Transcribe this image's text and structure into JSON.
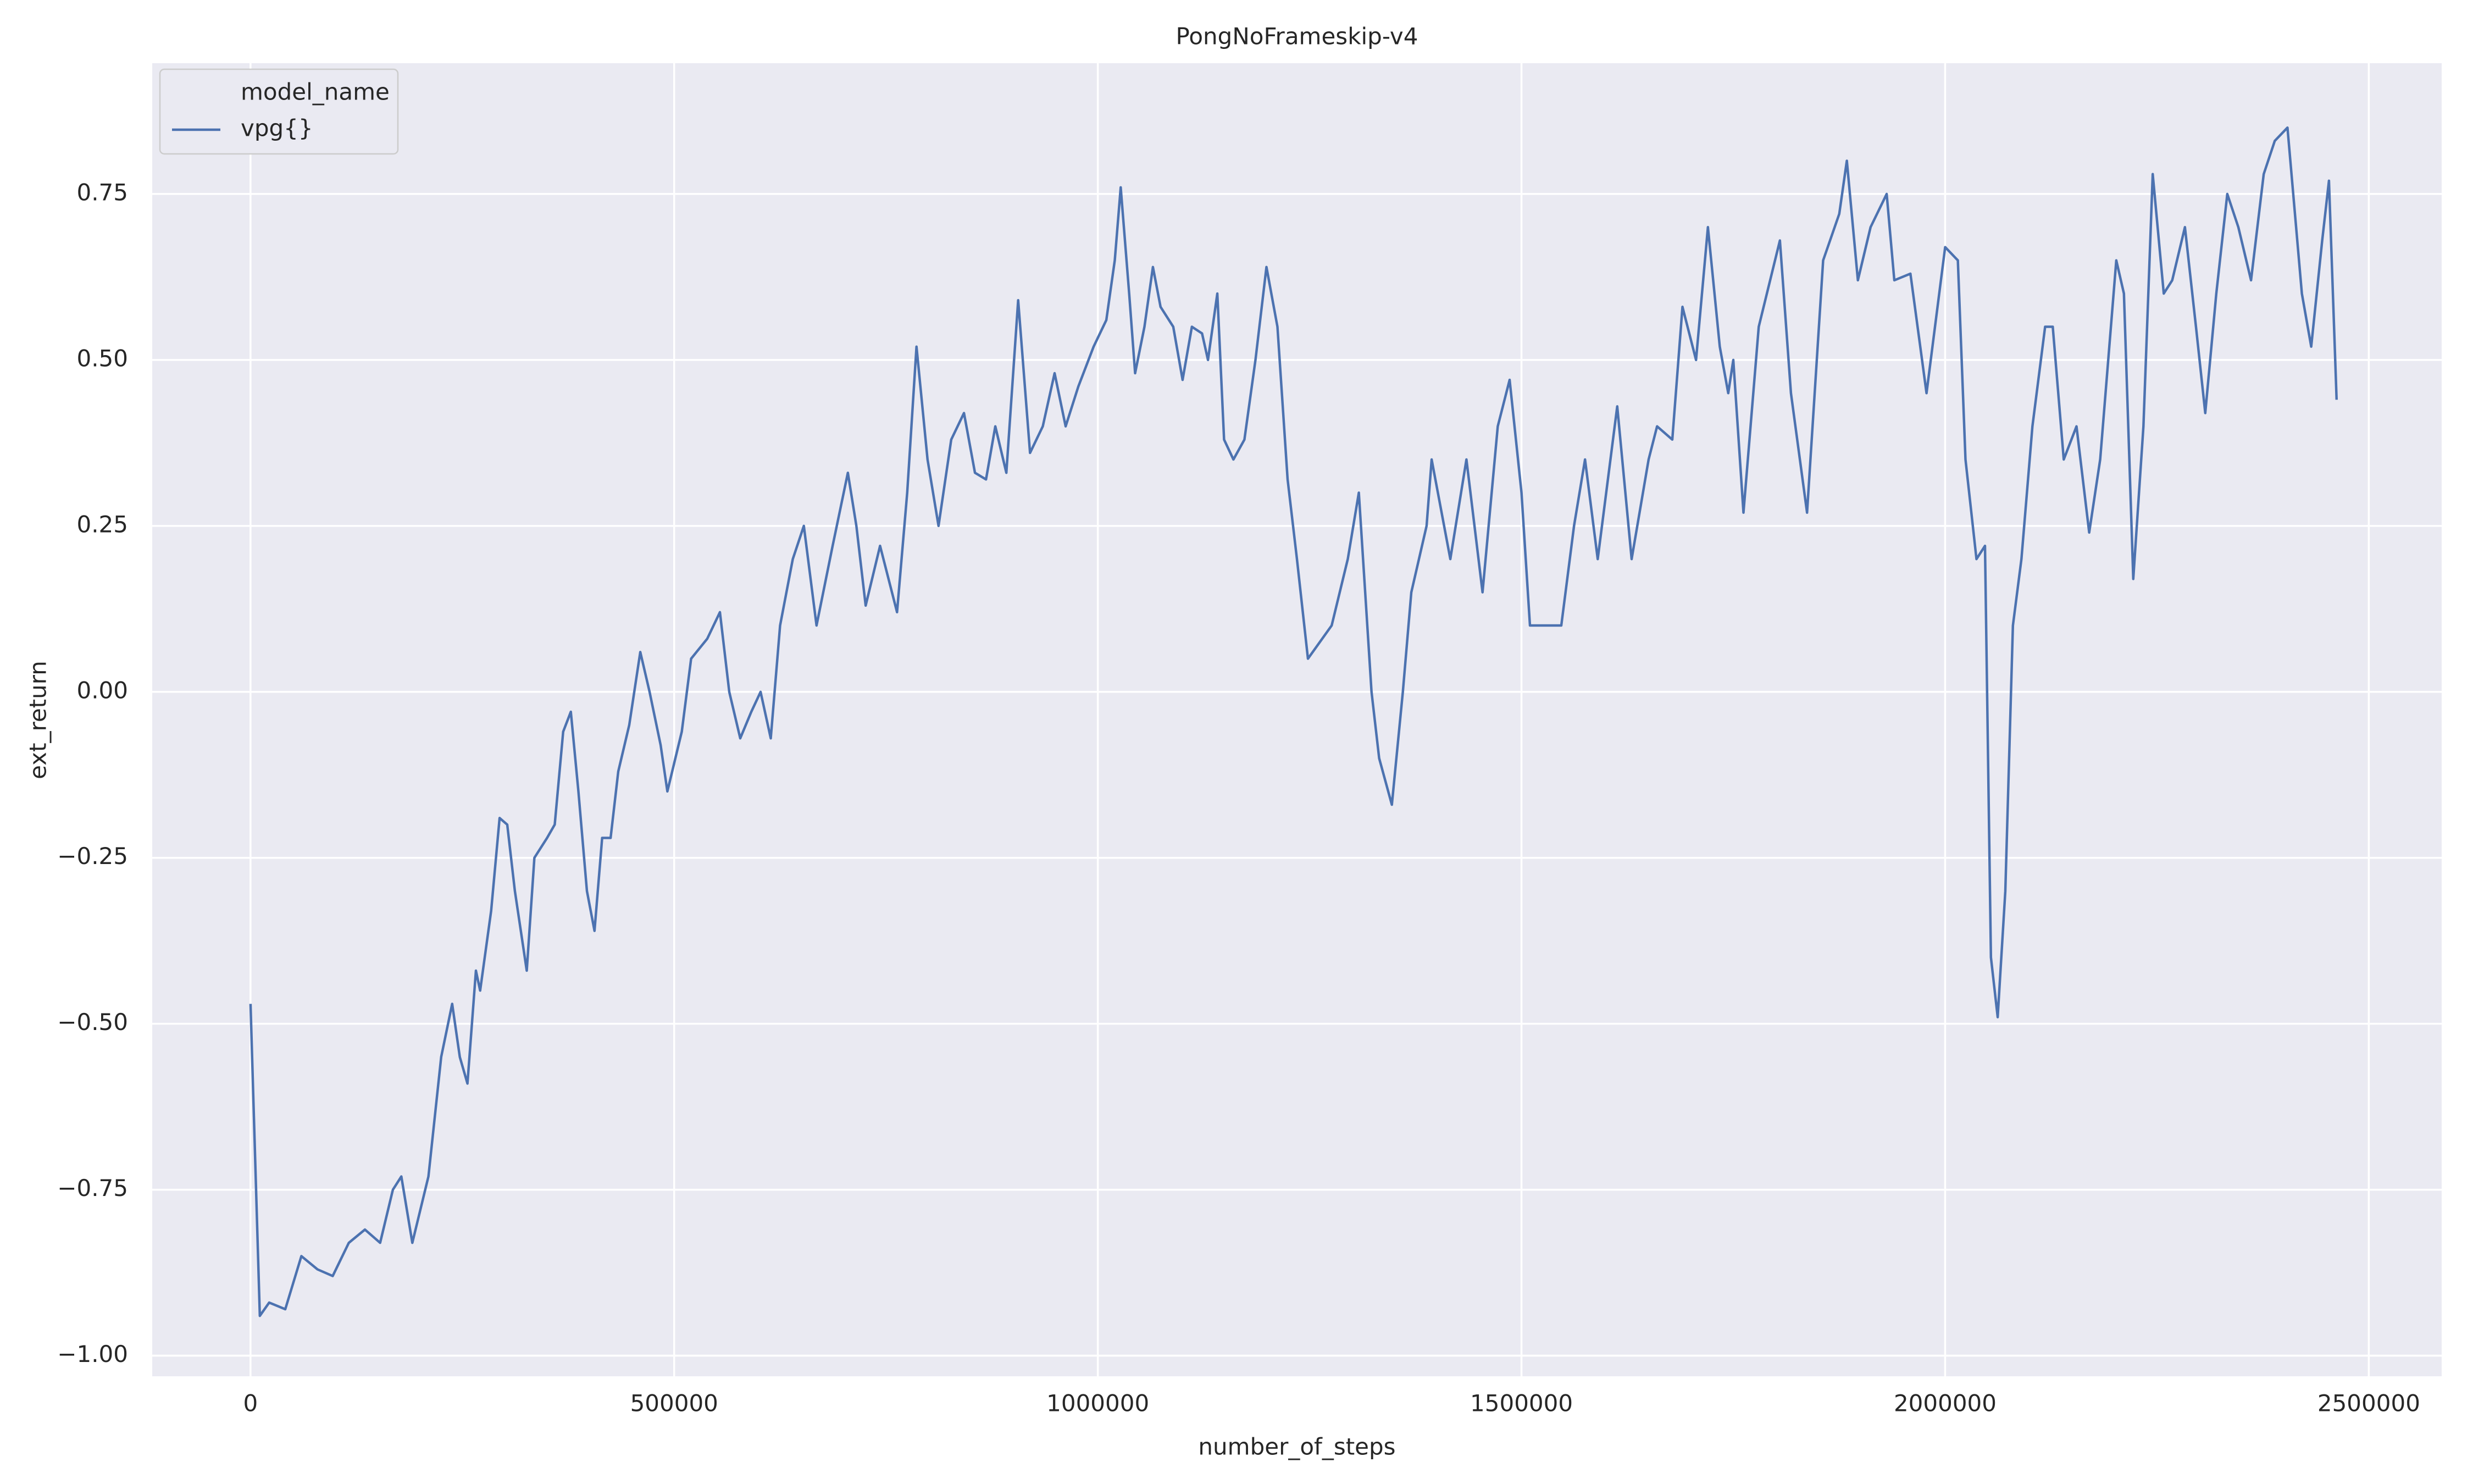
{
  "chart_data": {
    "type": "line",
    "title": "PongNoFrameskip-v4",
    "x_label": "number_of_steps",
    "y_label": "ext_return",
    "legend_title": "model_name",
    "legend": "upper left",
    "grid": true,
    "xlim": [
      -116000,
      2586000
    ],
    "ylim": [
      -1.031,
      0.947
    ],
    "xticks": [
      0,
      500000,
      1000000,
      1500000,
      2000000,
      2500000
    ],
    "yticks": [
      {
        "value": -1.0,
        "label": "−1.00"
      },
      {
        "value": -0.75,
        "label": "−0.75"
      },
      {
        "value": -0.5,
        "label": "−0.50"
      },
      {
        "value": -0.25,
        "label": "−0.25"
      },
      {
        "value": 0.0,
        "label": "0.00"
      },
      {
        "value": 0.25,
        "label": "0.25"
      },
      {
        "value": 0.5,
        "label": "0.50"
      },
      {
        "value": 0.75,
        "label": "0.75"
      }
    ],
    "x": [
      0,
      11000,
      22000,
      41000,
      60000,
      79000,
      97000,
      116000,
      135000,
      153000,
      168000,
      178000,
      191000,
      210000,
      225000,
      238000,
      247000,
      256000,
      266000,
      271000,
      284000,
      294000,
      303000,
      312000,
      326000,
      335000,
      350000,
      359000,
      369000,
      378000,
      387000,
      397000,
      406000,
      415000,
      425000,
      434000,
      447000,
      460000,
      471000,
      484000,
      492000,
      509000,
      520000,
      539000,
      554000,
      565000,
      578000,
      591000,
      602000,
      614000,
      625000,
      640000,
      653000,
      668000,
      687000,
      705000,
      715000,
      726000,
      743000,
      763000,
      775000,
      786000,
      799000,
      812000,
      827000,
      842000,
      855000,
      868000,
      879000,
      892000,
      906000,
      920000,
      935000,
      949000,
      962000,
      977000,
      995000,
      1010000,
      1020000,
      1027000,
      1037000,
      1044000,
      1055000,
      1065000,
      1074000,
      1089000,
      1100000,
      1111000,
      1123000,
      1130000,
      1141000,
      1149000,
      1160000,
      1173000,
      1186000,
      1199000,
      1212000,
      1224000,
      1235000,
      1248000,
      1276000,
      1295000,
      1308000,
      1323000,
      1332000,
      1347000,
      1360000,
      1370000,
      1388000,
      1394000,
      1416000,
      1435000,
      1454000,
      1472000,
      1486000,
      1500000,
      1510000,
      1528000,
      1547000,
      1562000,
      1575000,
      1590000,
      1613000,
      1630000,
      1650000,
      1660000,
      1678000,
      1690000,
      1706000,
      1720000,
      1734000,
      1744000,
      1750000,
      1762000,
      1780000,
      1805000,
      1818000,
      1837000,
      1856000,
      1875000,
      1884000,
      1897000,
      1912000,
      1931000,
      1940000,
      1959000,
      1978000,
      2000000,
      2015000,
      2024000,
      2037000,
      2047000,
      2054000,
      2062000,
      2071000,
      2080000,
      2090000,
      2103000,
      2118000,
      2127000,
      2140000,
      2155000,
      2170000,
      2183000,
      2202000,
      2211000,
      2222000,
      2234000,
      2245000,
      2258000,
      2268000,
      2283000,
      2296000,
      2307000,
      2320000,
      2333000,
      2346000,
      2361000,
      2376000,
      2389000,
      2404000,
      2421000,
      2432000,
      2445000,
      2453000,
      2462000
    ],
    "series": [
      {
        "name": "vpg{}",
        "color": "#4c72b0",
        "values": [
          -0.47,
          -0.94,
          -0.92,
          -0.93,
          -0.85,
          -0.87,
          -0.88,
          -0.83,
          -0.81,
          -0.83,
          -0.75,
          -0.73,
          -0.83,
          -0.73,
          -0.55,
          -0.47,
          -0.55,
          -0.59,
          -0.42,
          -0.45,
          -0.33,
          -0.19,
          -0.2,
          -0.3,
          -0.42,
          -0.25,
          -0.22,
          -0.2,
          -0.06,
          -0.03,
          -0.15,
          -0.3,
          -0.36,
          -0.22,
          -0.22,
          -0.12,
          -0.05,
          0.06,
          0.0,
          -0.08,
          -0.15,
          -0.06,
          0.05,
          0.08,
          0.12,
          0.0,
          -0.07,
          -0.03,
          0.0,
          -0.07,
          0.1,
          0.2,
          0.25,
          0.1,
          0.22,
          0.33,
          0.25,
          0.13,
          0.22,
          0.12,
          0.3,
          0.52,
          0.35,
          0.25,
          0.38,
          0.42,
          0.33,
          0.32,
          0.4,
          0.33,
          0.59,
          0.36,
          0.4,
          0.48,
          0.4,
          0.46,
          0.52,
          0.56,
          0.65,
          0.76,
          0.6,
          0.48,
          0.55,
          0.64,
          0.58,
          0.55,
          0.47,
          0.55,
          0.54,
          0.5,
          0.6,
          0.38,
          0.35,
          0.38,
          0.5,
          0.64,
          0.55,
          0.32,
          0.2,
          0.05,
          0.1,
          0.2,
          0.3,
          0.0,
          -0.1,
          -0.17,
          0.0,
          0.15,
          0.25,
          0.35,
          0.2,
          0.35,
          0.15,
          0.4,
          0.47,
          0.3,
          0.1,
          0.1,
          0.1,
          0.25,
          0.35,
          0.2,
          0.43,
          0.2,
          0.35,
          0.4,
          0.38,
          0.58,
          0.5,
          0.7,
          0.52,
          0.45,
          0.5,
          0.27,
          0.55,
          0.68,
          0.45,
          0.27,
          0.65,
          0.72,
          0.8,
          0.62,
          0.7,
          0.75,
          0.62,
          0.63,
          0.45,
          0.67,
          0.65,
          0.35,
          0.2,
          0.22,
          -0.4,
          -0.49,
          -0.3,
          0.1,
          0.2,
          0.4,
          0.55,
          0.55,
          0.35,
          0.4,
          0.24,
          0.35,
          0.65,
          0.6,
          0.17,
          0.4,
          0.78,
          0.6,
          0.62,
          0.7,
          0.55,
          0.42,
          0.6,
          0.75,
          0.7,
          0.62,
          0.78,
          0.83,
          0.85,
          0.6,
          0.52,
          0.68,
          0.77,
          0.44
        ]
      }
    ]
  }
}
